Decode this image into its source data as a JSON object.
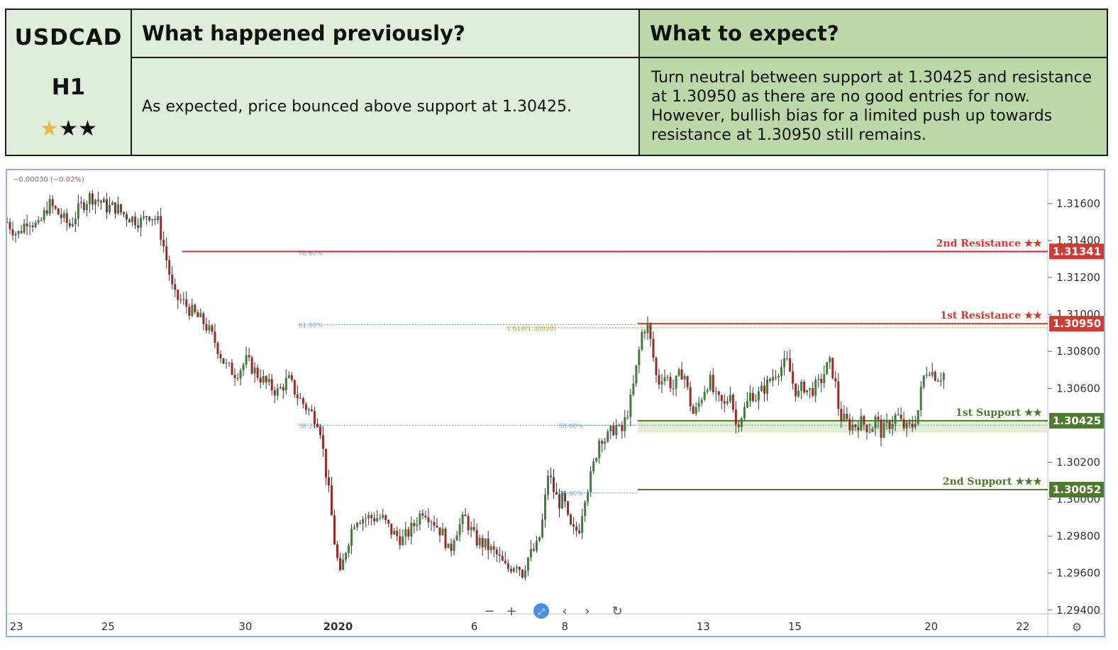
{
  "header": {
    "symbol": "USDCAD",
    "timeframe": "H1",
    "rating": {
      "filled": 1,
      "total": 3
    },
    "prev_title": "What happened previously?",
    "prev_text": "As expected, price bounced above support at 1.30425.",
    "exp_title": "What to expect?",
    "exp_text": "Turn neutral between support at 1.30425 and resistance at 1.30950 as there are no good entries for now. However, bullish bias for a limited push up towards resistance at 1.30950 still remains."
  },
  "chart_data": {
    "type": "candlestick",
    "price_change_label": "−0.00030 (−0.02%)",
    "y_range": [
      1.2938,
      1.3178
    ],
    "y_ticks": [
      "1.31600",
      "1.31400",
      "1.31200",
      "1.31000",
      "1.30800",
      "1.30600",
      "1.30200",
      "1.30000",
      "1.29800",
      "1.29600",
      "1.29400"
    ],
    "x_ticks": [
      "23",
      "25",
      "30",
      "2020",
      "6",
      "8",
      "13",
      "15",
      "20",
      "22"
    ],
    "levels": [
      {
        "label": "2nd Resistance ★★",
        "price": 1.31341,
        "value_label": "1.31341",
        "color": "#d03a32"
      },
      {
        "label": "1st Resistance ★★",
        "price": 1.3095,
        "value_label": "1.30950",
        "color": "#d03a32"
      },
      {
        "label": "1st Support ★★",
        "price": 1.30425,
        "value_label": "1.30425",
        "color": "#4e7a2e"
      },
      {
        "label": "2nd Support ★★★",
        "price": 1.30052,
        "value_label": "1.30052",
        "color": "#4e7a2e"
      }
    ],
    "fib_labels": [
      {
        "text": "78.60%",
        "price": 1.31335
      },
      {
        "text": "61.80%",
        "price": 1.30945
      },
      {
        "text": "38.20%",
        "price": 1.304
      },
      {
        "text": "50.00%",
        "price": 1.304
      },
      {
        "text": "1.618(1.30928)",
        "price": 1.30928
      },
      {
        "text": "78.60%",
        "price": 1.30034
      }
    ],
    "price_path": [
      [
        0.0,
        1.315
      ],
      [
        0.01,
        1.3143
      ],
      [
        0.02,
        1.3152
      ],
      [
        0.03,
        1.3147
      ],
      [
        0.04,
        1.316
      ],
      [
        0.05,
        1.3154
      ],
      [
        0.06,
        1.3148
      ],
      [
        0.07,
        1.3158
      ],
      [
        0.08,
        1.3164
      ],
      [
        0.09,
        1.3161
      ],
      [
        0.095,
        1.3158
      ],
      [
        0.105,
        1.3158
      ],
      [
        0.11,
        1.3155
      ],
      [
        0.12,
        1.3152
      ],
      [
        0.13,
        1.315
      ],
      [
        0.135,
        1.3155
      ],
      [
        0.14,
        1.3153
      ],
      [
        0.145,
        1.315
      ],
      [
        0.15,
        1.3138
      ],
      [
        0.155,
        1.3125
      ],
      [
        0.16,
        1.311
      ],
      [
        0.17,
        1.3106
      ],
      [
        0.18,
        1.31
      ],
      [
        0.19,
        1.3095
      ],
      [
        0.2,
        1.3085
      ],
      [
        0.21,
        1.3072
      ],
      [
        0.22,
        1.3068
      ],
      [
        0.23,
        1.3075
      ],
      [
        0.24,
        1.3068
      ],
      [
        0.25,
        1.3062
      ],
      [
        0.26,
        1.3058
      ],
      [
        0.27,
        1.3065
      ],
      [
        0.28,
        1.3055
      ],
      [
        0.29,
        1.3048
      ],
      [
        0.3,
        1.3042
      ],
      [
        0.305,
        1.302
      ],
      [
        0.31,
        1.3
      ],
      [
        0.315,
        1.2975
      ],
      [
        0.32,
        1.2958
      ],
      [
        0.325,
        1.2972
      ],
      [
        0.33,
        1.2982
      ],
      [
        0.335,
        1.299
      ],
      [
        0.345,
        1.299
      ],
      [
        0.36,
        1.299
      ],
      [
        0.37,
        1.2982
      ],
      [
        0.38,
        1.2978
      ],
      [
        0.39,
        1.2985
      ],
      [
        0.4,
        1.2995
      ],
      [
        0.41,
        1.2988
      ],
      [
        0.42,
        1.298
      ],
      [
        0.425,
        1.297
      ],
      [
        0.43,
        1.2982
      ],
      [
        0.44,
        1.299
      ],
      [
        0.45,
        1.2978
      ],
      [
        0.46,
        1.2975
      ],
      [
        0.47,
        1.297
      ],
      [
        0.48,
        1.2962
      ],
      [
        0.49,
        1.2966
      ],
      [
        0.495,
        1.296
      ],
      [
        0.5,
        1.2968
      ],
      [
        0.51,
        1.2975
      ],
      [
        0.515,
        1.299
      ],
      [
        0.52,
        1.3015
      ],
      [
        0.525,
        1.3005
      ],
      [
        0.53,
        1.2998
      ],
      [
        0.535,
        1.3
      ],
      [
        0.54,
        1.2985
      ],
      [
        0.545,
        1.2982
      ],
      [
        0.55,
        1.2985
      ],
      [
        0.555,
        1.3002
      ],
      [
        0.56,
        1.301
      ],
      [
        0.565,
        1.3022
      ],
      [
        0.57,
        1.3035
      ],
      [
        0.575,
        1.3032
      ],
      [
        0.58,
        1.3036
      ],
      [
        0.585,
        1.304
      ],
      [
        0.59,
        1.3035
      ],
      [
        0.595,
        1.3045
      ],
      [
        0.6,
        1.3055
      ],
      [
        0.605,
        1.3072
      ],
      [
        0.61,
        1.309
      ],
      [
        0.615,
        1.3095
      ],
      [
        0.62,
        1.308
      ],
      [
        0.625,
        1.3062
      ],
      [
        0.63,
        1.3068
      ],
      [
        0.635,
        1.3065
      ],
      [
        0.64,
        1.306
      ],
      [
        0.645,
        1.3066
      ],
      [
        0.65,
        1.307
      ],
      [
        0.655,
        1.3055
      ],
      [
        0.66,
        1.3045
      ],
      [
        0.665,
        1.3052
      ],
      [
        0.67,
        1.306
      ],
      [
        0.675,
        1.3065
      ],
      [
        0.68,
        1.3055
      ],
      [
        0.69,
        1.305
      ],
      [
        0.695,
        1.306
      ],
      [
        0.7,
        1.304
      ],
      [
        0.71,
        1.305
      ],
      [
        0.715,
        1.3058
      ],
      [
        0.72,
        1.3055
      ],
      [
        0.73,
        1.3062
      ],
      [
        0.74,
        1.307
      ],
      [
        0.75,
        1.3074
      ],
      [
        0.755,
        1.3063
      ],
      [
        0.76,
        1.3056
      ],
      [
        0.765,
        1.3062
      ],
      [
        0.77,
        1.3058
      ],
      [
        0.78,
        1.3062
      ],
      [
        0.79,
        1.3074
      ],
      [
        0.795,
        1.3066
      ],
      [
        0.8,
        1.3045
      ],
      [
        0.81,
        1.304
      ],
      [
        0.815,
        1.304
      ],
      [
        0.82,
        1.3042
      ],
      [
        0.83,
        1.3038
      ],
      [
        0.835,
        1.3044
      ],
      [
        0.84,
        1.3036
      ],
      [
        0.85,
        1.3042
      ],
      [
        0.855,
        1.3046
      ],
      [
        0.86,
        1.304
      ],
      [
        0.865,
        1.3038
      ],
      [
        0.87,
        1.304
      ],
      [
        0.875,
        1.3047
      ],
      [
        0.88,
        1.3065
      ],
      [
        0.885,
        1.3072
      ],
      [
        0.89,
        1.3068
      ],
      [
        0.895,
        1.3066
      ],
      [
        0.9,
        1.3068
      ]
    ]
  }
}
